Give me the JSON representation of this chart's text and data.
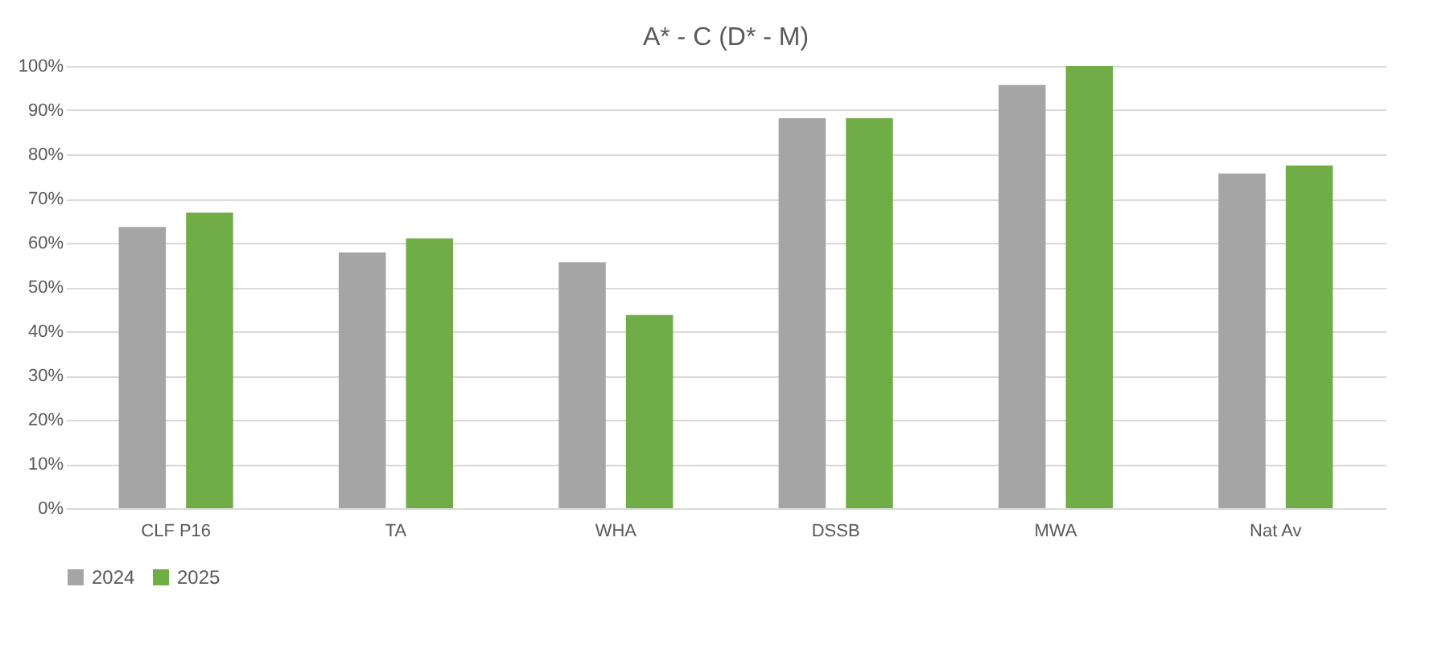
{
  "chart_data": {
    "type": "bar",
    "title": "A* - C (D* - M)",
    "categories": [
      "CLF P16",
      "TA",
      "WHA",
      "DSSB",
      "MWA",
      "Nat Av"
    ],
    "series": [
      {
        "name": "2024",
        "color": "#a5a5a5",
        "values": [
          63.6,
          57.8,
          55.6,
          88.2,
          95.7,
          75.7
        ]
      },
      {
        "name": "2025",
        "color": "#70ad47",
        "values": [
          66.8,
          61.0,
          43.7,
          88.2,
          100,
          77.5
        ]
      }
    ],
    "ylim": [
      0,
      100
    ],
    "yticks": [
      {
        "value": 0,
        "label": "0%"
      },
      {
        "value": 10,
        "label": "10%"
      },
      {
        "value": 20,
        "label": "20%"
      },
      {
        "value": 30,
        "label": "30%"
      },
      {
        "value": 40,
        "label": "40%"
      },
      {
        "value": 50,
        "label": "50%"
      },
      {
        "value": 60,
        "label": "60%"
      },
      {
        "value": 70,
        "label": "70%"
      },
      {
        "value": 80,
        "label": "80%"
      },
      {
        "value": 90,
        "label": "90%"
      },
      {
        "value": 100,
        "label": "100%"
      }
    ],
    "grid": "y",
    "legend": "bottom"
  }
}
